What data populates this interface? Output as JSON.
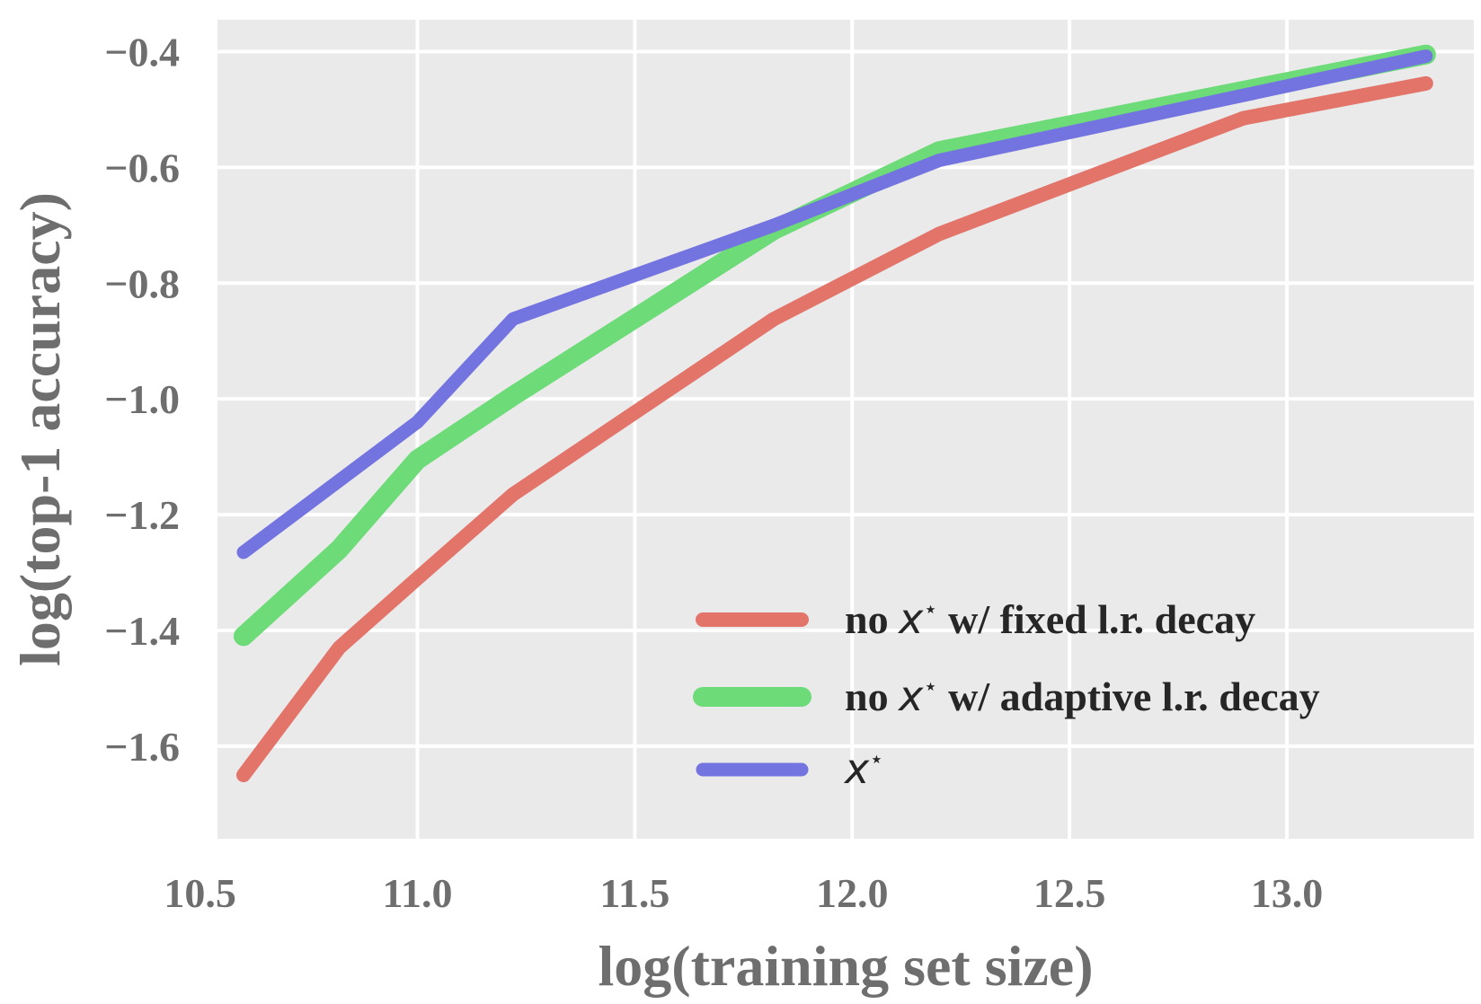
{
  "chart_data": {
    "type": "line",
    "title": "",
    "xlabel": "log(training set size)",
    "ylabel": "log(top-1 accuracy)",
    "xlim": [
      10.54,
      13.43
    ],
    "ylim": [
      -1.76,
      -0.345
    ],
    "xticks": [
      10.5,
      11.0,
      11.5,
      12.0,
      12.5,
      13.0
    ],
    "xtick_labels": [
      "10.5",
      "11.0",
      "11.5",
      "12.0",
      "12.5",
      "13.0"
    ],
    "yticks": [
      -0.4,
      -0.6,
      -0.8,
      -1.0,
      -1.2,
      -1.4,
      -1.6
    ],
    "ytick_labels": [
      "−0.4",
      "−0.6",
      "−0.8",
      "−1.0",
      "−1.2",
      "−1.4",
      "−1.6"
    ],
    "grid": true,
    "legend_position": "lower-right",
    "series": [
      {
        "name": "no x* w/ fixed l.r. decay",
        "legend_prefix": "no ",
        "legend_symbol": "x",
        "legend_suffix": " w/ fixed l.r. decay",
        "color": "#e2746a",
        "line_width": 16,
        "x": [
          10.6,
          10.82,
          11.0,
          11.22,
          11.82,
          12.2,
          12.9,
          13.32
        ],
        "y": [
          -1.65,
          -1.43,
          -1.31,
          -1.165,
          -0.862,
          -0.715,
          -0.515,
          -0.455
        ]
      },
      {
        "name": "no x* w/ adaptive l.r. decay",
        "legend_prefix": "no ",
        "legend_symbol": "x",
        "legend_suffix": " w/ adaptive l.r. decay",
        "color": "#6cdb78",
        "line_width": 22,
        "x": [
          10.6,
          10.82,
          11.0,
          11.22,
          11.82,
          12.2,
          13.32
        ],
        "y": [
          -1.41,
          -1.26,
          -1.105,
          -0.995,
          -0.708,
          -0.572,
          -0.405
        ]
      },
      {
        "name": "x*",
        "legend_prefix": "",
        "legend_symbol": "x",
        "legend_suffix": "",
        "color": "#7474e0",
        "line_width": 15,
        "x": [
          10.6,
          11.0,
          11.22,
          11.82,
          12.2,
          13.32
        ],
        "y": [
          -1.265,
          -1.04,
          -0.862,
          -0.7,
          -0.588,
          -0.408
        ]
      }
    ]
  }
}
